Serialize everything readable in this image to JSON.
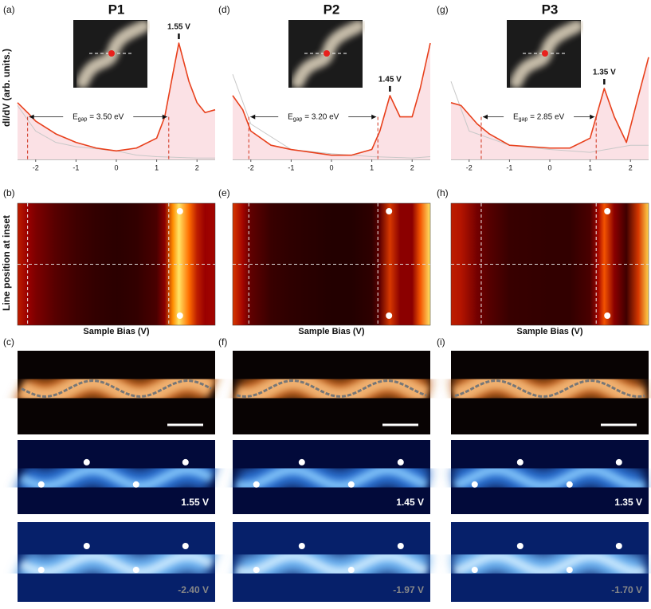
{
  "figure": {
    "y_label_top": "dI/dV (arb. units.)",
    "y_label_mid": "Line position at inset"
  },
  "chart_data": [
    {
      "type": "line",
      "title": "P1",
      "panel_labels": [
        "(a)",
        "(b)",
        "(c)"
      ],
      "x_axis_label": "Sample Bias (V)",
      "peak_label": "1.55 V",
      "egap_label": {
        "main": "E",
        "sub": "gap",
        "rest": " = 3.50 eV"
      },
      "gap_edges": [
        -2.2,
        1.3
      ],
      "xlim": [
        -2.45,
        2.45
      ],
      "ylim": [
        0,
        1
      ],
      "xticks": [
        -2,
        -1,
        0,
        1,
        2
      ],
      "series": [
        {
          "color": "#e8401c",
          "x": [
            -2.45,
            -2.2,
            -2.0,
            -1.5,
            -1.0,
            -0.5,
            0,
            0.5,
            1.0,
            1.2,
            1.4,
            1.55,
            1.8,
            2.0,
            2.2,
            2.45
          ],
          "values": [
            0.4,
            0.33,
            0.27,
            0.18,
            0.12,
            0.08,
            0.06,
            0.08,
            0.15,
            0.3,
            0.6,
            0.82,
            0.55,
            0.4,
            0.33,
            0.35
          ]
        },
        {
          "color": "#c8c8c8",
          "x": [
            -2.45,
            -2.0,
            -1.5,
            -1.0,
            0,
            0.5,
            1.0,
            2.0,
            2.45
          ],
          "values": [
            0.38,
            0.2,
            0.12,
            0.09,
            0.06,
            0.03,
            0.02,
            0.01,
            0.01
          ]
        }
      ],
      "images": {
        "high_bias": "1.55 V",
        "low_bias": "-2.40 V"
      }
    },
    {
      "type": "line",
      "title": "P2",
      "panel_labels": [
        "(d)",
        "(e)",
        "(f)"
      ],
      "x_axis_label": "Sample Bias (V)",
      "peak_label": "1.45 V",
      "egap_label": {
        "main": "E",
        "sub": "gap",
        "rest": " = 3.20 eV"
      },
      "gap_edges": [
        -2.05,
        1.15
      ],
      "xlim": [
        -2.45,
        2.45
      ],
      "ylim": [
        0,
        1
      ],
      "xticks": [
        -2,
        -1,
        0,
        1,
        2
      ],
      "series": [
        {
          "color": "#e8401c",
          "x": [
            -2.45,
            -2.2,
            -2.0,
            -1.5,
            -1.0,
            0,
            0.5,
            1.0,
            1.2,
            1.45,
            1.7,
            2.0,
            2.2,
            2.45
          ],
          "values": [
            0.45,
            0.35,
            0.2,
            0.1,
            0.07,
            0.03,
            0.03,
            0.07,
            0.2,
            0.45,
            0.3,
            0.3,
            0.5,
            0.82
          ]
        },
        {
          "color": "#c8c8c8",
          "x": [
            -2.45,
            -2.0,
            -1.0,
            0,
            1.0,
            2.0,
            2.45
          ],
          "values": [
            0.6,
            0.25,
            0.07,
            0.04,
            0.02,
            0.01,
            0.02
          ]
        }
      ],
      "images": {
        "high_bias": "1.45 V",
        "low_bias": "-1.97 V"
      }
    },
    {
      "type": "line",
      "title": "P3",
      "panel_labels": [
        "(g)",
        "(h)",
        "(i)"
      ],
      "x_axis_label": "Sample Bias (V)",
      "peak_label": "1.35 V",
      "egap_label": {
        "main": "E",
        "sub": "gap",
        "rest": " = 2.85 eV"
      },
      "gap_edges": [
        -1.7,
        1.15
      ],
      "xlim": [
        -2.45,
        2.45
      ],
      "ylim": [
        0,
        1
      ],
      "xticks": [
        -2,
        -1,
        0,
        1,
        2
      ],
      "series": [
        {
          "color": "#e8401c",
          "x": [
            -2.45,
            -2.2,
            -1.8,
            -1.5,
            -1.0,
            0,
            0.5,
            1.0,
            1.2,
            1.35,
            1.6,
            1.9,
            2.2,
            2.45
          ],
          "values": [
            0.4,
            0.38,
            0.25,
            0.18,
            0.1,
            0.08,
            0.08,
            0.15,
            0.35,
            0.5,
            0.3,
            0.12,
            0.45,
            0.72
          ]
        },
        {
          "color": "#c8c8c8",
          "x": [
            -2.45,
            -2.0,
            -1.0,
            0,
            1.0,
            2.0,
            2.45
          ],
          "values": [
            0.55,
            0.2,
            0.1,
            0.07,
            0.05,
            0.1,
            0.1
          ]
        }
      ],
      "images": {
        "high_bias": "1.35 V",
        "low_bias": "-1.70 V"
      }
    }
  ]
}
